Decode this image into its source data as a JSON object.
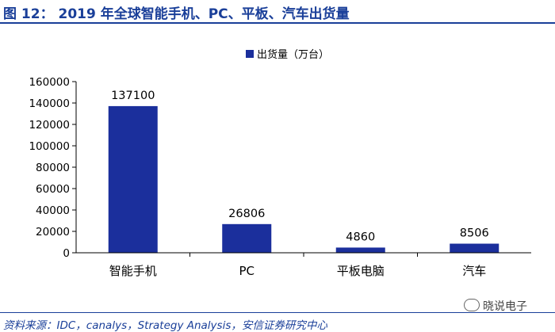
{
  "header": {
    "title": "图 12：   2019 年全球智能手机、PC、平板、汽车出货量"
  },
  "chart_data": {
    "type": "bar",
    "categories": [
      "智能手机",
      "PC",
      "平板电脑",
      "汽车"
    ],
    "series": [
      {
        "name": "出货量（万台）",
        "values": [
          137100,
          26806,
          4860,
          8506
        ],
        "color": "#1b2f9c"
      }
    ],
    "data_labels": [
      "137100",
      "26806",
      "4860",
      "8506"
    ],
    "yticks": [
      "0",
      "20000",
      "40000",
      "60000",
      "80000",
      "100000",
      "120000",
      "140000",
      "160000"
    ],
    "ylim": [
      0,
      160000
    ],
    "legend_position": "top-center",
    "grid": false
  },
  "footer": {
    "source": "资料来源：IDC，canalys，Strategy Analysis，安信证券研究中心",
    "watermark": "晓说电子"
  }
}
